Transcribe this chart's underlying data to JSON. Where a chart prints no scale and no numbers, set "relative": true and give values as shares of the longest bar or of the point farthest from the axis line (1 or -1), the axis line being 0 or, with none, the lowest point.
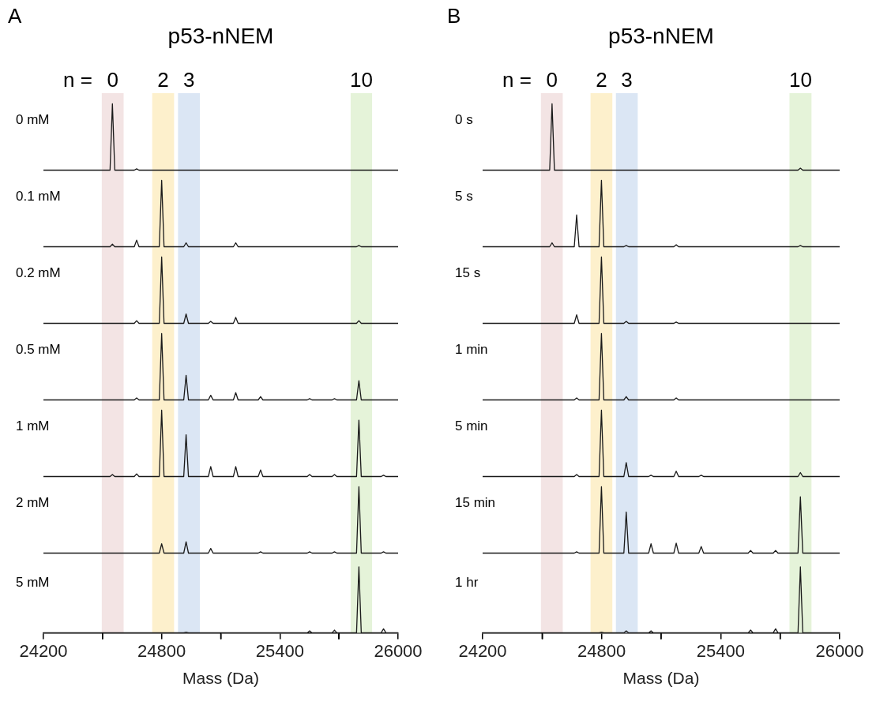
{
  "chart_data": [
    {
      "type": "line",
      "title": "p53-nNEM",
      "annotations": [
        "A",
        "n ="
      ],
      "ylabel": "0 mM",
      "relative": true,
      "tick_labels": false,
      "xlim": [
        24200,
        26000
      ],
      "bands": [
        {
          "axis": "x",
          "from": 24496,
          "to": 24607,
          "label": "0",
          "color": "#f3e4e4"
        },
        {
          "axis": "x",
          "from": 24752,
          "to": 24863,
          "label": "2",
          "color": "#fdf0cc"
        },
        {
          "axis": "x",
          "from": 24883,
          "to": 24994,
          "label": "3",
          "color": "#dbe6f4"
        },
        {
          "axis": "x",
          "from": 25759,
          "to": 25868,
          "label": "10",
          "color": "#e5f3d9"
        }
      ],
      "series": [
        {
          "color": "#1a1a1a",
          "x": [
            24200,
            24538,
            24550,
            24562,
            24661,
            24673,
            24685,
            26000
          ],
          "values": [
            0,
            0,
            1,
            0,
            0,
            0.02,
            0,
            0
          ]
        }
      ]
    },
    {
      "type": "line",
      "ylabel": "0.1 mM",
      "relative": true,
      "tick_labels": false,
      "xlim": [
        24200,
        26000
      ],
      "bands": [
        {
          "axis": "x",
          "from": 24496,
          "to": 24607,
          "color": "#f3e4e4"
        },
        {
          "axis": "x",
          "from": 24752,
          "to": 24863,
          "color": "#fdf0cc"
        },
        {
          "axis": "x",
          "from": 24883,
          "to": 24994,
          "color": "#dbe6f4"
        },
        {
          "axis": "x",
          "from": 25759,
          "to": 25868,
          "color": "#e5f3d9"
        }
      ],
      "series": [
        {
          "color": "#1a1a1a",
          "x": [
            24200,
            24538,
            24550,
            24562,
            24661,
            24673,
            24685,
            24788,
            24800,
            24812,
            24912,
            24924,
            24936,
            25164,
            25176,
            25188,
            25789,
            25801,
            25813,
            26000
          ],
          "values": [
            0,
            0,
            0.04,
            0,
            0,
            0.1,
            0,
            0,
            1,
            0,
            0,
            0.06,
            0,
            0,
            0.06,
            0,
            0,
            0.02,
            0,
            0
          ]
        }
      ]
    },
    {
      "type": "line",
      "ylabel": "0.2 mM",
      "relative": true,
      "tick_labels": false,
      "xlim": [
        24200,
        26000
      ],
      "bands": [
        {
          "axis": "x",
          "from": 24496,
          "to": 24607,
          "color": "#f3e4e4"
        },
        {
          "axis": "x",
          "from": 24752,
          "to": 24863,
          "color": "#fdf0cc"
        },
        {
          "axis": "x",
          "from": 24883,
          "to": 24994,
          "color": "#dbe6f4"
        },
        {
          "axis": "x",
          "from": 25759,
          "to": 25868,
          "color": "#e5f3d9"
        }
      ],
      "series": [
        {
          "color": "#1a1a1a",
          "x": [
            24200,
            24661,
            24673,
            24685,
            24788,
            24800,
            24812,
            24912,
            24924,
            24936,
            25037,
            25049,
            25061,
            25164,
            25176,
            25188,
            25789,
            25801,
            25813,
            26000
          ],
          "values": [
            0,
            0,
            0.04,
            0,
            0,
            1,
            0,
            0,
            0.14,
            0,
            0,
            0.03,
            0,
            0,
            0.09,
            0,
            0,
            0.04,
            0,
            0
          ]
        }
      ]
    },
    {
      "type": "line",
      "ylabel": "0.5 mM",
      "relative": true,
      "tick_labels": false,
      "xlim": [
        24200,
        26000
      ],
      "bands": [
        {
          "axis": "x",
          "from": 24496,
          "to": 24607,
          "color": "#f3e4e4"
        },
        {
          "axis": "x",
          "from": 24752,
          "to": 24863,
          "color": "#fdf0cc"
        },
        {
          "axis": "x",
          "from": 24883,
          "to": 24994,
          "color": "#dbe6f4"
        },
        {
          "axis": "x",
          "from": 25759,
          "to": 25868,
          "color": "#e5f3d9"
        }
      ],
      "series": [
        {
          "color": "#1a1a1a",
          "x": [
            24200,
            24661,
            24673,
            24685,
            24788,
            24800,
            24812,
            24912,
            24924,
            24936,
            25037,
            25049,
            25061,
            25164,
            25176,
            25188,
            25290,
            25302,
            25314,
            25539,
            25551,
            25563,
            25665,
            25677,
            25689,
            25789,
            25801,
            25813,
            26000
          ],
          "values": [
            0,
            0,
            0.03,
            0,
            0,
            1,
            0,
            0,
            0.37,
            0,
            0,
            0.07,
            0,
            0,
            0.11,
            0,
            0,
            0.05,
            0,
            0,
            0.02,
            0,
            0,
            0.02,
            0,
            0,
            0.29,
            0,
            0
          ]
        }
      ]
    },
    {
      "type": "line",
      "ylabel": "1 mM",
      "relative": true,
      "tick_labels": false,
      "xlim": [
        24200,
        26000
      ],
      "bands": [
        {
          "axis": "x",
          "from": 24496,
          "to": 24607,
          "color": "#f3e4e4"
        },
        {
          "axis": "x",
          "from": 24752,
          "to": 24863,
          "color": "#fdf0cc"
        },
        {
          "axis": "x",
          "from": 24883,
          "to": 24994,
          "color": "#dbe6f4"
        },
        {
          "axis": "x",
          "from": 25759,
          "to": 25868,
          "color": "#e5f3d9"
        }
      ],
      "series": [
        {
          "color": "#1a1a1a",
          "x": [
            24200,
            24538,
            24550,
            24562,
            24661,
            24673,
            24685,
            24788,
            24800,
            24812,
            24912,
            24924,
            24936,
            25037,
            25049,
            25061,
            25164,
            25176,
            25188,
            25290,
            25302,
            25314,
            25539,
            25551,
            25563,
            25665,
            25677,
            25689,
            25789,
            25801,
            25813,
            25914,
            25926,
            25938,
            26000
          ],
          "values": [
            0,
            0,
            0.03,
            0,
            0,
            0.04,
            0,
            0,
            1,
            0,
            0,
            0.63,
            0,
            0,
            0.15,
            0,
            0,
            0.15,
            0,
            0,
            0.1,
            0,
            0,
            0.03,
            0,
            0,
            0.03,
            0,
            0,
            0.85,
            0,
            0,
            0.02,
            0,
            0
          ]
        }
      ]
    },
    {
      "type": "line",
      "ylabel": "2 mM",
      "relative": true,
      "tick_labels": false,
      "xlim": [
        24200,
        26000
      ],
      "bands": [
        {
          "axis": "x",
          "from": 24496,
          "to": 24607,
          "color": "#f3e4e4"
        },
        {
          "axis": "x",
          "from": 24752,
          "to": 24863,
          "color": "#fdf0cc"
        },
        {
          "axis": "x",
          "from": 24883,
          "to": 24994,
          "color": "#dbe6f4"
        },
        {
          "axis": "x",
          "from": 25759,
          "to": 25868,
          "color": "#e5f3d9"
        }
      ],
      "series": [
        {
          "color": "#1a1a1a",
          "x": [
            24200,
            24788,
            24800,
            24812,
            24912,
            24924,
            24936,
            25037,
            25049,
            25061,
            25290,
            25302,
            25314,
            25539,
            25551,
            25563,
            25665,
            25677,
            25689,
            25789,
            25801,
            25813,
            25914,
            25926,
            25938,
            26000
          ],
          "values": [
            0,
            0,
            0.14,
            0,
            0,
            0.17,
            0,
            0,
            0.07,
            0,
            0,
            0.02,
            0,
            0,
            0.02,
            0,
            0,
            0.02,
            0,
            0,
            1,
            0,
            0,
            0.02,
            0,
            0
          ]
        }
      ]
    },
    {
      "type": "line",
      "ylabel": "5 mM",
      "xlabel": "Mass (Da)",
      "relative": true,
      "tick_labels": "x",
      "xlim": [
        24200,
        26000
      ],
      "xticks": [
        24200,
        {
          "value": 24500,
          "label": null
        },
        24800,
        {
          "value": 25100,
          "label": null
        },
        25400,
        {
          "value": 25700,
          "label": null
        },
        26000
      ],
      "bands": [
        {
          "axis": "x",
          "from": 24496,
          "to": 24607,
          "color": "#f3e4e4"
        },
        {
          "axis": "x",
          "from": 24752,
          "to": 24863,
          "color": "#fdf0cc"
        },
        {
          "axis": "x",
          "from": 24883,
          "to": 24994,
          "color": "#dbe6f4"
        },
        {
          "axis": "x",
          "from": 25759,
          "to": 25868,
          "color": "#e5f3d9"
        }
      ],
      "series": [
        {
          "color": "#1a1a1a",
          "x": [
            24200,
            24912,
            24924,
            24936,
            25539,
            25551,
            25563,
            25665,
            25677,
            25689,
            25789,
            25801,
            25813,
            25914,
            25926,
            25938,
            26000
          ],
          "values": [
            0,
            0,
            0.01,
            0,
            0,
            0.03,
            0,
            0,
            0.04,
            0,
            0,
            1,
            0,
            0,
            0.06,
            0,
            0
          ]
        }
      ]
    },
    {
      "type": "line",
      "title": "p53-nNEM",
      "annotations": [
        "B",
        "n ="
      ],
      "ylabel": "0 s",
      "relative": true,
      "tick_labels": false,
      "xlim": [
        24200,
        26000
      ],
      "bands": [
        {
          "axis": "x",
          "from": 24494,
          "to": 24604,
          "label": "0",
          "color": "#f3e4e4"
        },
        {
          "axis": "x",
          "from": 24744,
          "to": 24854,
          "label": "2",
          "color": "#fdf0cc"
        },
        {
          "axis": "x",
          "from": 24872,
          "to": 24982,
          "label": "3",
          "color": "#dbe6f4"
        },
        {
          "axis": "x",
          "from": 25747,
          "to": 25858,
          "label": "10",
          "color": "#e5f3d9"
        }
      ],
      "series": [
        {
          "color": "#1a1a1a",
          "x": [
            24200,
            24538,
            24550,
            24562,
            25790,
            25802,
            25814,
            26000
          ],
          "values": [
            0,
            0,
            1,
            0,
            0,
            0.03,
            0,
            0
          ]
        }
      ]
    },
    {
      "type": "line",
      "ylabel": "5 s",
      "relative": true,
      "tick_labels": false,
      "xlim": [
        24200,
        26000
      ],
      "bands": [
        {
          "axis": "x",
          "from": 24494,
          "to": 24604,
          "color": "#f3e4e4"
        },
        {
          "axis": "x",
          "from": 24744,
          "to": 24854,
          "color": "#fdf0cc"
        },
        {
          "axis": "x",
          "from": 24872,
          "to": 24982,
          "color": "#dbe6f4"
        },
        {
          "axis": "x",
          "from": 25747,
          "to": 25858,
          "color": "#e5f3d9"
        }
      ],
      "series": [
        {
          "color": "#1a1a1a",
          "x": [
            24200,
            24538,
            24550,
            24562,
            24662,
            24674,
            24686,
            24787,
            24799,
            24811,
            24912,
            24924,
            24936,
            25164,
            25176,
            25188,
            25790,
            25802,
            25814,
            26000
          ],
          "values": [
            0,
            0,
            0.06,
            0,
            0,
            0.48,
            0,
            0,
            1,
            0,
            0,
            0.02,
            0,
            0,
            0.03,
            0,
            0,
            0.02,
            0,
            0
          ]
        }
      ]
    },
    {
      "type": "line",
      "ylabel": "15 s",
      "relative": true,
      "tick_labels": false,
      "xlim": [
        24200,
        26000
      ],
      "bands": [
        {
          "axis": "x",
          "from": 24494,
          "to": 24604,
          "color": "#f3e4e4"
        },
        {
          "axis": "x",
          "from": 24744,
          "to": 24854,
          "color": "#fdf0cc"
        },
        {
          "axis": "x",
          "from": 24872,
          "to": 24982,
          "color": "#dbe6f4"
        },
        {
          "axis": "x",
          "from": 25747,
          "to": 25858,
          "color": "#e5f3d9"
        }
      ],
      "series": [
        {
          "color": "#1a1a1a",
          "x": [
            24200,
            24662,
            24674,
            24686,
            24787,
            24799,
            24811,
            24912,
            24924,
            24936,
            25164,
            25176,
            25188,
            26000
          ],
          "values": [
            0,
            0,
            0.13,
            0,
            0,
            1,
            0,
            0,
            0.03,
            0,
            0,
            0.02,
            0,
            0
          ]
        }
      ]
    },
    {
      "type": "line",
      "ylabel": "1 min",
      "relative": true,
      "tick_labels": false,
      "xlim": [
        24200,
        26000
      ],
      "bands": [
        {
          "axis": "x",
          "from": 24494,
          "to": 24604,
          "color": "#f3e4e4"
        },
        {
          "axis": "x",
          "from": 24744,
          "to": 24854,
          "color": "#fdf0cc"
        },
        {
          "axis": "x",
          "from": 24872,
          "to": 24982,
          "color": "#dbe6f4"
        },
        {
          "axis": "x",
          "from": 25747,
          "to": 25858,
          "color": "#e5f3d9"
        }
      ],
      "series": [
        {
          "color": "#1a1a1a",
          "x": [
            24200,
            24662,
            24674,
            24686,
            24787,
            24799,
            24811,
            24912,
            24924,
            24936,
            25164,
            25176,
            25188,
            26000
          ],
          "values": [
            0,
            0,
            0.03,
            0,
            0,
            1,
            0,
            0,
            0.05,
            0,
            0,
            0.03,
            0,
            0
          ]
        }
      ]
    },
    {
      "type": "line",
      "ylabel": "5 min",
      "relative": true,
      "tick_labels": false,
      "xlim": [
        24200,
        26000
      ],
      "bands": [
        {
          "axis": "x",
          "from": 24494,
          "to": 24604,
          "color": "#f3e4e4"
        },
        {
          "axis": "x",
          "from": 24744,
          "to": 24854,
          "color": "#fdf0cc"
        },
        {
          "axis": "x",
          "from": 24872,
          "to": 24982,
          "color": "#dbe6f4"
        },
        {
          "axis": "x",
          "from": 25747,
          "to": 25858,
          "color": "#e5f3d9"
        }
      ],
      "series": [
        {
          "color": "#1a1a1a",
          "x": [
            24200,
            24662,
            24674,
            24686,
            24787,
            24799,
            24811,
            24912,
            24924,
            24936,
            25037,
            25049,
            25061,
            25164,
            25176,
            25188,
            25290,
            25302,
            25314,
            25790,
            25802,
            25814,
            26000
          ],
          "values": [
            0,
            0,
            0.03,
            0,
            0,
            1,
            0,
            0,
            0.21,
            0,
            0,
            0.02,
            0,
            0,
            0.08,
            0,
            0,
            0.02,
            0,
            0,
            0.06,
            0,
            0
          ]
        }
      ]
    },
    {
      "type": "line",
      "ylabel": "15 min",
      "relative": true,
      "tick_labels": false,
      "xlim": [
        24200,
        26000
      ],
      "bands": [
        {
          "axis": "x",
          "from": 24494,
          "to": 24604,
          "color": "#f3e4e4"
        },
        {
          "axis": "x",
          "from": 24744,
          "to": 24854,
          "color": "#fdf0cc"
        },
        {
          "axis": "x",
          "from": 24872,
          "to": 24982,
          "color": "#dbe6f4"
        },
        {
          "axis": "x",
          "from": 25747,
          "to": 25858,
          "color": "#e5f3d9"
        }
      ],
      "series": [
        {
          "color": "#1a1a1a",
          "x": [
            24200,
            24662,
            24674,
            24686,
            24787,
            24799,
            24811,
            24912,
            24924,
            24936,
            25037,
            25049,
            25061,
            25164,
            25176,
            25188,
            25290,
            25302,
            25314,
            25539,
            25551,
            25563,
            25665,
            25677,
            25689,
            25790,
            25802,
            25814,
            26000
          ],
          "values": [
            0,
            0,
            0.02,
            0,
            0,
            1,
            0,
            0,
            0.62,
            0,
            0,
            0.14,
            0,
            0,
            0.15,
            0,
            0,
            0.1,
            0,
            0,
            0.04,
            0,
            0,
            0.04,
            0,
            0,
            0.85,
            0,
            0
          ]
        }
      ]
    },
    {
      "type": "line",
      "ylabel": "1 hr",
      "xlabel": "Mass (Da)",
      "relative": true,
      "tick_labels": "x",
      "xlim": [
        24200,
        26000
      ],
      "xticks": [
        24200,
        {
          "value": 24500,
          "label": null
        },
        24800,
        {
          "value": 25100,
          "label": null
        },
        25400,
        {
          "value": 25700,
          "label": null
        },
        26000
      ],
      "bands": [
        {
          "axis": "x",
          "from": 24494,
          "to": 24604,
          "color": "#f3e4e4"
        },
        {
          "axis": "x",
          "from": 24744,
          "to": 24854,
          "color": "#fdf0cc"
        },
        {
          "axis": "x",
          "from": 24872,
          "to": 24982,
          "color": "#dbe6f4"
        },
        {
          "axis": "x",
          "from": 25747,
          "to": 25858,
          "color": "#e5f3d9"
        }
      ],
      "series": [
        {
          "color": "#1a1a1a",
          "x": [
            24200,
            24787,
            24799,
            24811,
            24912,
            24924,
            24936,
            25037,
            25049,
            25061,
            25539,
            25551,
            25563,
            25665,
            25677,
            25689,
            25790,
            25802,
            25814,
            26000
          ],
          "values": [
            0,
            0,
            0.01,
            0,
            0,
            0.03,
            0,
            0,
            0.03,
            0,
            0,
            0.04,
            0,
            0,
            0.06,
            0,
            0,
            1,
            0,
            0
          ]
        }
      ]
    }
  ]
}
